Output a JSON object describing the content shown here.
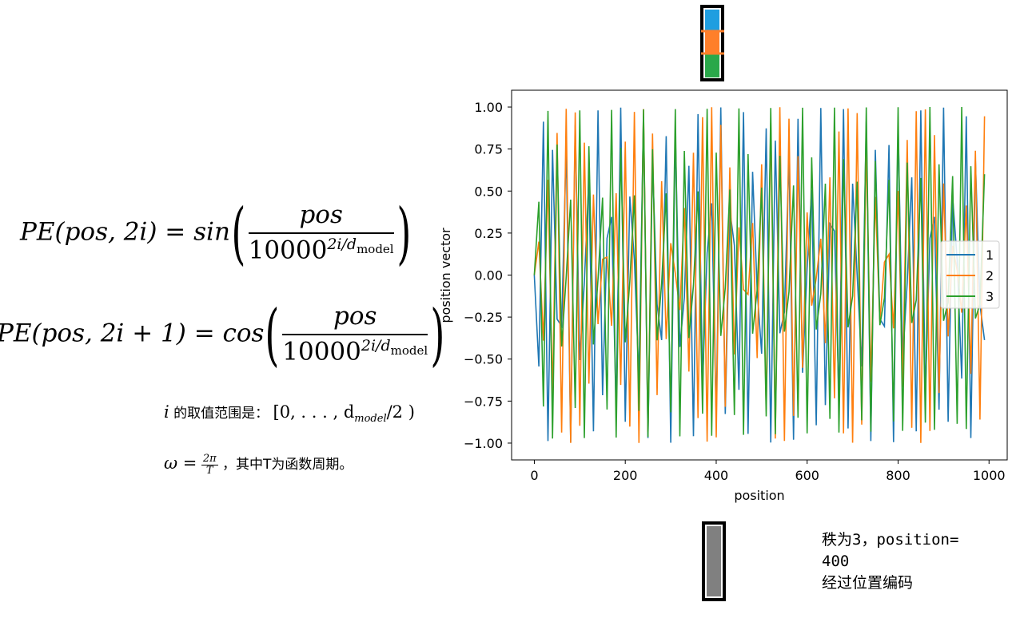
{
  "formulas": {
    "sin_lhs": "PE(pos, 2i) = sin",
    "cos_lhs": "PE(pos, 2i + 1) = cos",
    "numerator": "pos",
    "denominator_base": "10000",
    "denominator_exp": "2i/d",
    "denominator_sub": "model"
  },
  "notes": {
    "i_var": "i",
    "i_text": "的取值范围是：",
    "i_range": "[0, . . . , d",
    "i_range_sub": "model",
    "i_range_end": "/2 )",
    "omega_var": "ω =",
    "omega_num": "2π",
    "omega_den": "T",
    "omega_text": "，其中T为函数周期。"
  },
  "caption": "秩为3，position=\n400\n经过位置编码",
  "vector_colors": [
    "#1f9ee0",
    "#ff7f2a",
    "#2aa84a"
  ],
  "vector_empty_color": "#808080",
  "chart_data": {
    "type": "line",
    "xlabel": "position",
    "ylabel": "position vector",
    "xlim": [
      -50,
      1040
    ],
    "ylim": [
      -1.1,
      1.1
    ],
    "xticks": [
      0,
      200,
      400,
      600,
      800,
      1000
    ],
    "yticks": [
      1.0,
      0.75,
      0.5,
      0.25,
      0.0,
      -0.25,
      -0.5,
      -0.75,
      -1.0
    ],
    "ytick_labels": [
      "1.00",
      "0.75",
      "0.50",
      "0.25",
      "0.00",
      "−0.25",
      "−0.50",
      "−0.75",
      "−1.00"
    ],
    "legend_position": "center-right",
    "x": [
      0,
      10,
      20,
      30,
      40,
      50,
      60,
      70,
      80,
      90,
      100,
      110,
      120,
      130,
      140,
      150,
      160,
      170,
      180,
      190,
      200,
      210,
      220,
      230,
      240,
      250,
      260,
      270,
      280,
      290,
      300,
      310,
      320,
      330,
      340,
      350,
      360,
      370,
      380,
      390,
      400,
      410,
      420,
      430,
      440,
      450,
      460,
      470,
      480,
      490,
      500,
      510,
      520,
      530,
      540,
      550,
      560,
      570,
      580,
      590,
      600,
      610,
      620,
      630,
      640,
      650,
      660,
      670,
      680,
      690,
      700,
      710,
      720,
      730,
      740,
      750,
      760,
      770,
      780,
      790,
      800,
      810,
      820,
      830,
      840,
      850,
      860,
      870,
      880,
      890,
      900,
      910,
      920,
      930,
      940,
      950,
      960,
      970,
      980,
      990
    ],
    "series": [
      {
        "name": "1",
        "color": "#1f77b4",
        "values": [
          0.0,
          -0.544,
          0.913,
          -0.988,
          0.745,
          -0.262,
          -0.305,
          0.774,
          -0.994,
          0.894,
          -0.506,
          -0.044,
          0.581,
          -0.93,
          0.98,
          -0.715,
          0.219,
          0.346,
          -0.801,
          0.997,
          -0.873,
          0.467,
          0.089,
          -0.616,
          0.945,
          -0.97,
          0.683,
          -0.176,
          -0.387,
          0.827,
          -0.998,
          0.851,
          -0.428,
          -0.133,
          0.65,
          -0.959,
          0.958,
          -0.649,
          0.132,
          0.427,
          -0.851,
          0.998,
          -0.827,
          0.388,
          0.177,
          -0.683,
          0.97,
          -0.945,
          0.615,
          -0.088,
          -0.468,
          0.873,
          -0.997,
          0.8,
          -0.346,
          -0.22,
          0.715,
          -0.98,
          0.93,
          -0.581,
          0.044,
          0.507,
          -0.894,
          0.994,
          -0.774,
          0.304,
          0.263,
          -0.745,
          0.988,
          -0.913,
          0.544,
          0.0,
          -0.544,
          0.913,
          -0.988,
          0.745,
          -0.262,
          -0.305,
          0.774,
          -0.994,
          0.894,
          -0.506,
          -0.044,
          0.581,
          -0.93,
          0.98,
          -0.715,
          0.219,
          0.346,
          -0.801,
          0.997,
          -0.873,
          0.467,
          0.089,
          -0.616,
          0.945,
          -0.97,
          0.683,
          -0.176,
          -0.387
        ]
      },
      {
        "name": "2",
        "color": "#ff7f0e",
        "values": [
          0.0,
          0.199,
          -0.39,
          0.567,
          -0.721,
          0.846,
          -0.937,
          0.99,
          -0.999,
          0.968,
          -0.897,
          0.788,
          -0.646,
          0.479,
          -0.292,
          0.094,
          0.107,
          -0.302,
          0.487,
          -0.654,
          0.794,
          -0.902,
          0.971,
          -0.999,
          0.988,
          -0.934,
          0.842,
          -0.714,
          0.559,
          -0.381,
          0.19,
          0.01,
          -0.208,
          0.399,
          -0.574,
          0.728,
          -0.851,
          0.94,
          -0.991,
          0.999,
          -0.966,
          0.894,
          -0.784,
          0.641,
          -0.472,
          0.284,
          -0.086,
          -0.115,
          0.31,
          -0.494,
          0.659,
          -0.799,
          0.906,
          -0.973,
          0.999,
          -0.987,
          0.931,
          -0.838,
          0.708,
          -0.552,
          0.373,
          -0.182,
          -0.018,
          0.216,
          -0.406,
          0.581,
          -0.733,
          0.855,
          -0.942,
          0.992,
          -0.998,
          0.964,
          -0.89,
          0.779,
          -0.635,
          0.465,
          -0.276,
          0.077,
          0.123,
          -0.317,
          0.501,
          -0.666,
          0.804,
          -0.909,
          0.975,
          -0.999,
          0.986,
          -0.928,
          0.833,
          -0.702,
          0.545,
          -0.365,
          0.174,
          0.027,
          -0.224,
          0.414,
          -0.588,
          0.74,
          -0.86,
          0.945
        ]
      },
      {
        "name": "3",
        "color": "#2ca02c",
        "values": [
          0.0,
          0.436,
          -0.782,
          0.977,
          -0.973,
          0.777,
          -0.425,
          -0.012,
          0.449,
          -0.791,
          0.98,
          -0.97,
          0.767,
          -0.413,
          -0.025,
          0.461,
          -0.8,
          0.983,
          -0.967,
          0.758,
          -0.4,
          -0.037,
          0.474,
          -0.808,
          0.986,
          -0.963,
          0.749,
          -0.388,
          -0.05,
          0.486,
          -0.817,
          0.988,
          -0.96,
          0.739,
          -0.375,
          -0.062,
          0.498,
          -0.825,
          0.99,
          -0.956,
          0.729,
          -0.362,
          -0.075,
          0.509,
          -0.833,
          0.992,
          -0.951,
          0.72,
          -0.349,
          -0.087,
          0.521,
          -0.841,
          0.994,
          -0.947,
          0.71,
          -0.337,
          -0.1,
          0.533,
          -0.849,
          0.996,
          -0.942,
          0.7,
          -0.324,
          -0.112,
          0.544,
          -0.856,
          0.997,
          -0.937,
          0.69,
          -0.311,
          -0.125,
          0.556,
          -0.864,
          0.998,
          -0.932,
          0.679,
          -0.298,
          -0.137,
          0.567,
          -0.871,
          0.999,
          -0.927,
          0.669,
          -0.285,
          -0.149,
          0.578,
          -0.878,
          1.0,
          -0.921,
          0.659,
          -0.272,
          -0.162,
          0.589,
          -0.885,
          1.0,
          -0.916,
          0.648,
          -0.258,
          -0.174,
          0.6
        ]
      }
    ]
  }
}
